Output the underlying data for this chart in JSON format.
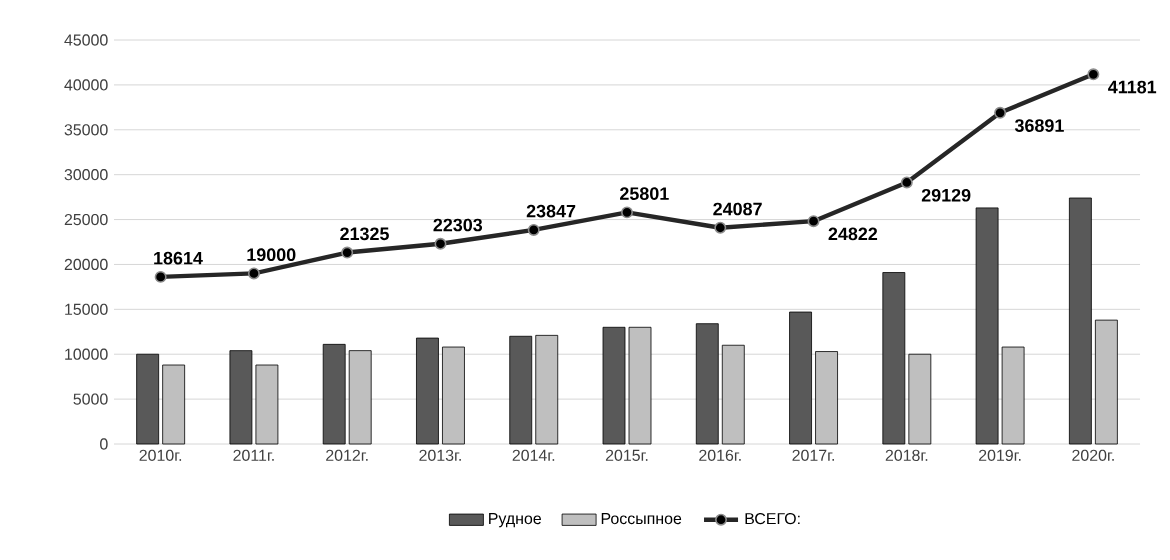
{
  "chart_data": {
    "type": "bar",
    "categories": [
      "2010г.",
      "2011г.",
      "2012г.",
      "2013г.",
      "2014г.",
      "2015г.",
      "2016г.",
      "2017г.",
      "2018г.",
      "2019г.",
      "2020г."
    ],
    "series": [
      {
        "name": "Рудное",
        "color": "#595959",
        "values": [
          10000,
          10400,
          11100,
          11800,
          12000,
          13000,
          13400,
          14700,
          19100,
          26300,
          27400
        ]
      },
      {
        "name": "Россыпное",
        "color": "#bfbfbf",
        "values": [
          8800,
          8800,
          10400,
          10800,
          12100,
          13000,
          11000,
          10300,
          10000,
          10800,
          13800
        ]
      },
      {
        "name": "ВСЕГО:",
        "type": "line",
        "color": "#262626",
        "marker": "circle",
        "values": [
          18614,
          19000,
          21325,
          22303,
          23847,
          25801,
          24087,
          24822,
          29129,
          36891,
          41181
        ],
        "value_labels": [
          "18614",
          "19000",
          "21325",
          "22303",
          "23847",
          "25801",
          "24087",
          "24822",
          "29129",
          "36891",
          "41181"
        ]
      }
    ],
    "ylim": [
      0,
      45000
    ],
    "yticks": [
      0,
      5000,
      10000,
      15000,
      20000,
      25000,
      30000,
      35000,
      40000,
      45000
    ],
    "grid": "y",
    "legend": "bottom"
  }
}
